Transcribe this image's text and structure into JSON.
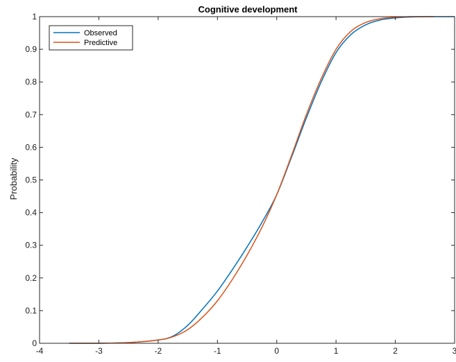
{
  "chart_data": {
    "type": "line",
    "title": "Cognitive development",
    "xlabel": "",
    "ylabel": "Probability",
    "xlim": [
      -4,
      3
    ],
    "ylim": [
      0,
      1
    ],
    "xticks": [
      -4,
      -3,
      -2,
      -1,
      0,
      1,
      2,
      3
    ],
    "yticks": [
      0,
      0.1,
      0.2,
      0.3,
      0.4,
      0.5,
      0.6,
      0.7,
      0.8,
      0.9,
      1
    ],
    "grid": false,
    "legend_position": "top-left",
    "series": [
      {
        "name": "Observed",
        "color": "#0072BD",
        "x": [
          -3.5,
          -3.0,
          -2.5,
          -2.0,
          -1.75,
          -1.5,
          -1.25,
          -1.0,
          -0.75,
          -0.5,
          -0.25,
          0.0,
          0.25,
          0.5,
          0.75,
          1.0,
          1.25,
          1.5,
          1.75,
          2.0,
          2.25,
          2.5,
          2.75,
          3.0
        ],
        "y": [
          0.0,
          0.0,
          0.002,
          0.01,
          0.022,
          0.055,
          0.105,
          0.16,
          0.225,
          0.295,
          0.37,
          0.455,
          0.57,
          0.69,
          0.8,
          0.89,
          0.945,
          0.975,
          0.99,
          0.996,
          0.999,
          1.0,
          1.0,
          1.0
        ]
      },
      {
        "name": "Predictive",
        "color": "#D95319",
        "x": [
          -3.5,
          -3.0,
          -2.5,
          -2.0,
          -1.75,
          -1.5,
          -1.25,
          -1.0,
          -0.75,
          -0.5,
          -0.25,
          0.0,
          0.25,
          0.5,
          0.75,
          1.0,
          1.25,
          1.5,
          1.75,
          2.0,
          2.25,
          2.5,
          2.65
        ],
        "y": [
          0.0,
          0.0,
          0.002,
          0.01,
          0.02,
          0.042,
          0.08,
          0.13,
          0.195,
          0.27,
          0.355,
          0.455,
          0.575,
          0.7,
          0.81,
          0.9,
          0.955,
          0.982,
          0.994,
          0.998,
          1.0,
          1.0,
          1.0
        ]
      }
    ]
  }
}
